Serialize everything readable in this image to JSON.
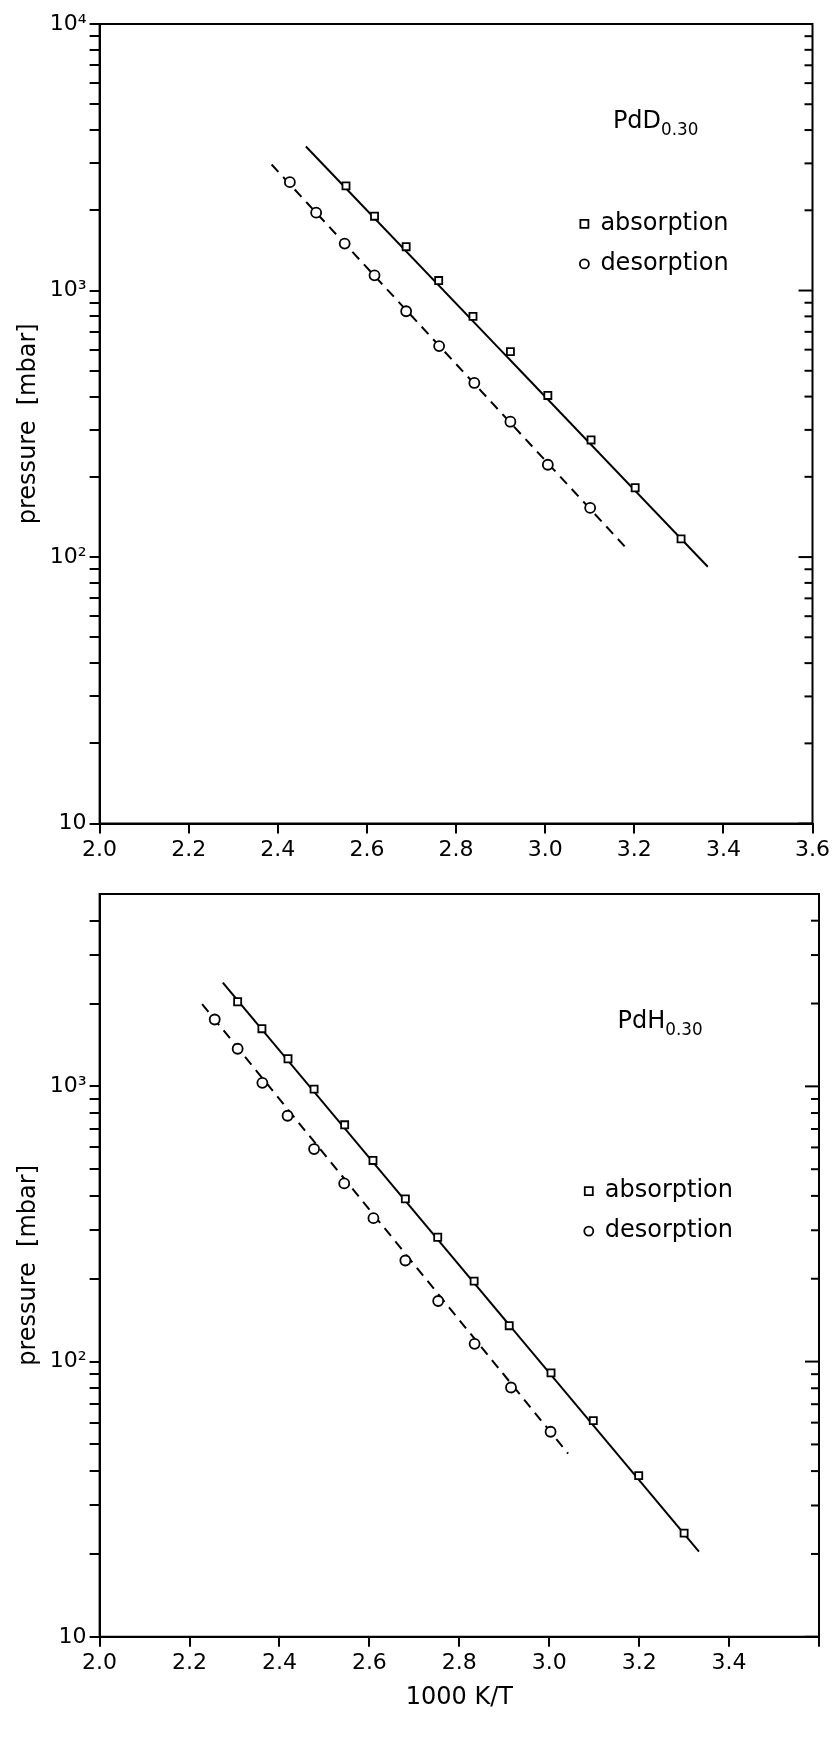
{
  "chart_data": [
    {
      "type": "scatter",
      "ylabel": "pressure  [mbar]",
      "annotations": [
        "PdD$_{0.30}$"
      ],
      "log": "y",
      "grid": false,
      "legend": "top right",
      "xlim": [
        2.0,
        3.6
      ],
      "xticks": [
        {
          "value": 2.0,
          "label": "2.0"
        },
        2.2,
        2.4,
        2.6,
        2.8,
        {
          "value": 3.0,
          "label": "3.0"
        },
        3.2,
        3.4,
        3.6
      ],
      "ylim": [
        10,
        10000
      ],
      "yticks": [
        10,
        {
          "value": 20,
          "label": null
        },
        {
          "value": 30,
          "label": null
        },
        {
          "value": 40,
          "label": null
        },
        {
          "value": 50,
          "label": null
        },
        {
          "value": 60,
          "label": null
        },
        {
          "value": 70,
          "label": null
        },
        {
          "value": 80,
          "label": null
        },
        {
          "value": 90,
          "label": null
        },
        {
          "value": 100,
          "label": "10²"
        },
        {
          "value": 200,
          "label": null
        },
        {
          "value": 300,
          "label": null
        },
        {
          "value": 400,
          "label": null
        },
        {
          "value": 500,
          "label": null
        },
        {
          "value": 600,
          "label": null
        },
        {
          "value": 700,
          "label": null
        },
        {
          "value": 800,
          "label": null
        },
        {
          "value": 900,
          "label": null
        },
        {
          "value": 1000,
          "label": "10³"
        },
        {
          "value": 2000,
          "label": null
        },
        {
          "value": 3000,
          "label": null
        },
        {
          "value": 4000,
          "label": null
        },
        {
          "value": 5000,
          "label": null
        },
        {
          "value": 6000,
          "label": null
        },
        {
          "value": 7000,
          "label": null
        },
        {
          "value": 8000,
          "label": null
        },
        {
          "value": 9000,
          "label": null
        },
        {
          "value": 10000,
          "label": "10⁴"
        }
      ],
      "series": [
        {
          "name": "absorption",
          "type": "scatter",
          "marker": "square",
          "color": "#000000",
          "x": [
            2.553,
            2.617,
            2.688,
            2.761,
            2.838,
            2.922,
            3.006,
            3.103,
            3.202,
            3.305
          ],
          "values": [
            2470,
            1900,
            1460,
            1090,
            800,
            590,
            404,
            275,
            182,
            117
          ]
        },
        {
          "name": "desorption",
          "type": "scatter",
          "marker": "circle",
          "color": "#000000",
          "x": [
            2.427,
            2.486,
            2.55,
            2.617,
            2.688,
            2.762,
            2.841,
            2.922,
            3.006,
            3.101
          ],
          "values": [
            2550,
            1960,
            1500,
            1140,
            836,
            619,
            450,
            322,
            222,
            153
          ]
        },
        {
          "type": "line",
          "line_style": "solid",
          "marker": "none",
          "color": "#000000",
          "x": [
            2.463,
            3.365
          ],
          "values": [
            3470,
            92
          ]
        },
        {
          "type": "line",
          "line_style": "dashed",
          "marker": "none",
          "color": "#000000",
          "x": [
            2.386,
            3.189
          ],
          "values": [
            2970,
            105
          ]
        }
      ]
    },
    {
      "type": "scatter",
      "xlabel": "1000 K/T",
      "ylabel": "pressure  [mbar]",
      "annotations": [
        "PdH$_{0.30}$"
      ],
      "log": "y",
      "grid": false,
      "legend": "right",
      "xlim": [
        2.0,
        3.6
      ],
      "xticks": [
        {
          "value": 2.0,
          "label": "2.0"
        },
        2.2,
        2.4,
        2.6,
        2.8,
        {
          "value": 3.0,
          "label": "3.0"
        },
        3.2,
        3.4,
        {
          "value": 3.6,
          "label": null
        }
      ],
      "ylim": [
        10,
        5000
      ],
      "yticks": [
        10,
        {
          "value": 20,
          "label": null
        },
        {
          "value": 30,
          "label": null
        },
        {
          "value": 40,
          "label": null
        },
        {
          "value": 50,
          "label": null
        },
        {
          "value": 60,
          "label": null
        },
        {
          "value": 70,
          "label": null
        },
        {
          "value": 80,
          "label": null
        },
        {
          "value": 90,
          "label": null
        },
        {
          "value": 100,
          "label": "10²"
        },
        {
          "value": 200,
          "label": null
        },
        {
          "value": 300,
          "label": null
        },
        {
          "value": 400,
          "label": null
        },
        {
          "value": 500,
          "label": null
        },
        {
          "value": 600,
          "label": null
        },
        {
          "value": 700,
          "label": null
        },
        {
          "value": 800,
          "label": null
        },
        {
          "value": 900,
          "label": null
        },
        {
          "value": 1000,
          "label": "10³"
        },
        {
          "value": 2000,
          "label": null
        },
        {
          "value": 3000,
          "label": null
        },
        {
          "value": 4000,
          "label": null
        }
      ],
      "series": [
        {
          "name": "absorption",
          "type": "scatter",
          "marker": "square",
          "color": "#000000",
          "x": [
            2.307,
            2.361,
            2.419,
            2.477,
            2.545,
            2.608,
            2.68,
            2.752,
            2.833,
            2.911,
            3.004,
            3.098,
            3.199,
            3.3
          ],
          "values": [
            2030,
            1620,
            1260,
            977,
            725,
            538,
            390,
            283,
            196,
            135,
            91,
            61,
            38.5,
            23.8
          ]
        },
        {
          "name": "desorption",
          "type": "scatter",
          "marker": "circle",
          "color": "#000000",
          "x": [
            2.256,
            2.307,
            2.362,
            2.418,
            2.477,
            2.544,
            2.609,
            2.68,
            2.753,
            2.834,
            2.915,
            3.003
          ],
          "values": [
            1750,
            1370,
            1030,
            782,
            592,
            444,
            332,
            233,
            166,
            116,
            80.5,
            55.6
          ]
        },
        {
          "type": "line",
          "line_style": "solid",
          "marker": "none",
          "color": "#000000",
          "x": [
            2.274,
            3.333
          ],
          "values": [
            2380,
            20.4
          ]
        },
        {
          "type": "line",
          "line_style": "dashed",
          "marker": "none",
          "color": "#000000",
          "x": [
            2.228,
            3.042
          ],
          "values": [
            1990,
            46.3
          ]
        }
      ]
    }
  ]
}
